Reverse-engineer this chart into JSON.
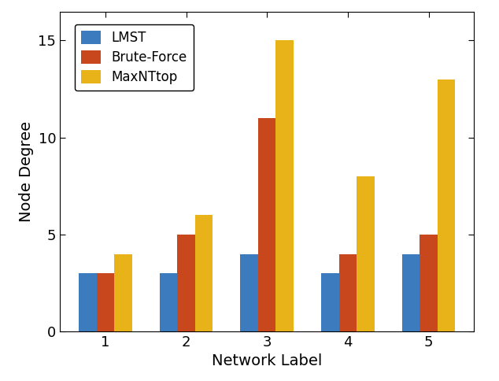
{
  "categories": [
    1,
    2,
    3,
    4,
    5
  ],
  "series": {
    "LMST": [
      3,
      3,
      4,
      3,
      4
    ],
    "Brute-Force": [
      3,
      5,
      11,
      4,
      5
    ],
    "MaxNTtop": [
      4,
      6,
      15,
      8,
      13
    ]
  },
  "colors": {
    "LMST": "#3d7bbf",
    "Brute-Force": "#c9471c",
    "MaxNTtop": "#e8b318"
  },
  "ylabel": "Node Degree",
  "xlabel": "Network Label",
  "ylim": [
    0,
    16.5
  ],
  "yticks": [
    0,
    5,
    10,
    15
  ],
  "legend_labels": [
    "LMST",
    "Brute-Force",
    "MaxNTtop"
  ],
  "bar_width": 0.22,
  "figsize": [
    6.34,
    4.84
  ],
  "dpi": 100,
  "tick_fontsize": 13,
  "label_fontsize": 14,
  "legend_fontsize": 12
}
